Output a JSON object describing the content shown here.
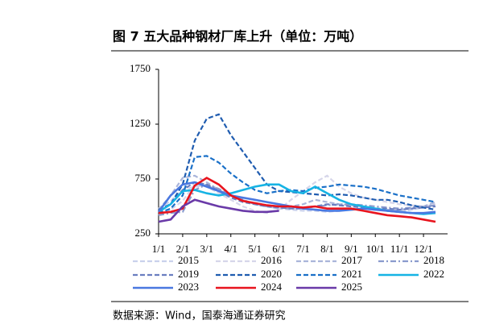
{
  "chart_data": {
    "type": "line",
    "title": "图 7 五大品种钢材厂库上升（单位：万吨）",
    "source": "数据来源：Wind，国泰海通证券研究",
    "x": [
      1,
      1.5,
      2,
      2.5,
      3,
      3.5,
      4,
      4.5,
      5,
      5.5,
      6,
      6.5,
      7,
      7.5,
      8,
      8.5,
      9,
      9.5,
      10,
      10.5,
      11,
      11.5,
      12,
      12.5
    ],
    "xlim": [
      1,
      13
    ],
    "xticks": [
      {
        "value": 1,
        "label": "1/1"
      },
      {
        "value": 2,
        "label": "2/1"
      },
      {
        "value": 3,
        "label": "3/1"
      },
      {
        "value": 4,
        "label": "4/1"
      },
      {
        "value": 5,
        "label": "5/1"
      },
      {
        "value": 6,
        "label": "6/1"
      },
      {
        "value": 7,
        "label": "7/1"
      },
      {
        "value": 8,
        "label": "8/1"
      },
      {
        "value": 9,
        "label": "9/1"
      },
      {
        "value": 10,
        "label": "10/1"
      },
      {
        "value": 11,
        "label": "11/1"
      },
      {
        "value": 12,
        "label": "12/1"
      }
    ],
    "ylim": [
      250,
      1750
    ],
    "yticks": [
      250,
      750,
      1250,
      1750
    ],
    "series": [
      {
        "name": "2015",
        "color": "#c9d1ec",
        "dash": "dashed",
        "values": [
          480,
          550,
          650,
          680,
          690,
          650,
          600,
          560,
          520,
          500,
          480,
          470,
          460,
          460,
          450,
          460,
          470,
          480,
          470,
          460,
          450,
          470,
          490,
          510
        ]
      },
      {
        "name": "2016",
        "color": "#d6d6ea",
        "dash": "dashed",
        "values": [
          420,
          470,
          550,
          700,
          680,
          620,
          560,
          500,
          460,
          440,
          470,
          560,
          640,
          720,
          780,
          680,
          620,
          580,
          560,
          540,
          520,
          510,
          500,
          520
        ]
      },
      {
        "name": "2017",
        "color": "#aab5da",
        "dash": "dashed",
        "values": [
          470,
          600,
          760,
          780,
          720,
          650,
          600,
          560,
          520,
          500,
          480,
          500,
          520,
          560,
          540,
          520,
          510,
          500,
          480,
          470,
          470,
          480,
          500,
          540
        ]
      },
      {
        "name": "2018",
        "color": "#8a9acd",
        "dash": "dashdot",
        "values": [
          420,
          440,
          450,
          650,
          700,
          660,
          600,
          560,
          520,
          500,
          490,
          480,
          490,
          500,
          510,
          520,
          520,
          510,
          500,
          490,
          480,
          490,
          500,
          510
        ]
      },
      {
        "name": "2019",
        "color": "#6a7ec0",
        "dash": "dashed",
        "values": [
          470,
          520,
          650,
          720,
          700,
          640,
          580,
          540,
          520,
          500,
          490,
          480,
          480,
          500,
          520,
          510,
          500,
          490,
          480,
          480,
          470,
          480,
          490,
          500
        ]
      },
      {
        "name": "2020",
        "color": "#1f5cb0",
        "dash": "dashed",
        "values": [
          470,
          520,
          700,
          1100,
          1300,
          1340,
          1150,
          1000,
          850,
          700,
          640,
          630,
          620,
          610,
          600,
          610,
          600,
          580,
          560,
          560,
          540,
          510,
          490,
          470
        ]
      },
      {
        "name": "2021",
        "color": "#1a70c8",
        "dash": "dashed",
        "values": [
          440,
          480,
          600,
          950,
          960,
          900,
          800,
          720,
          650,
          620,
          640,
          650,
          640,
          670,
          680,
          700,
          690,
          680,
          660,
          630,
          600,
          580,
          560,
          540
        ]
      },
      {
        "name": "2022",
        "color": "#16b3e4",
        "dash": "solid",
        "values": [
          450,
          520,
          640,
          650,
          620,
          600,
          620,
          650,
          680,
          700,
          700,
          640,
          620,
          680,
          620,
          560,
          520,
          500,
          480,
          460,
          450,
          440,
          430,
          440
        ]
      },
      {
        "name": "2023",
        "color": "#4a78e0",
        "dash": "solid",
        "values": [
          450,
          600,
          700,
          720,
          680,
          640,
          600,
          580,
          560,
          540,
          520,
          500,
          480,
          470,
          460,
          460,
          470,
          480,
          470,
          460,
          450,
          440,
          440,
          450
        ]
      },
      {
        "name": "2024",
        "color": "#e8141e",
        "dash": "solid",
        "values": [
          440,
          450,
          480,
          690,
          760,
          700,
          600,
          550,
          530,
          510,
          500,
          500,
          490,
          500,
          480,
          480,
          480,
          460,
          440,
          420,
          410,
          400,
          380,
          360
        ]
      },
      {
        "name": "2025",
        "color": "#6a3aa8",
        "dash": "solid",
        "values": [
          360,
          380,
          500,
          560,
          530,
          500,
          480,
          460,
          450,
          450,
          460,
          null,
          null,
          null,
          null,
          null,
          null,
          null,
          null,
          null,
          null,
          null,
          null,
          null
        ]
      }
    ]
  }
}
